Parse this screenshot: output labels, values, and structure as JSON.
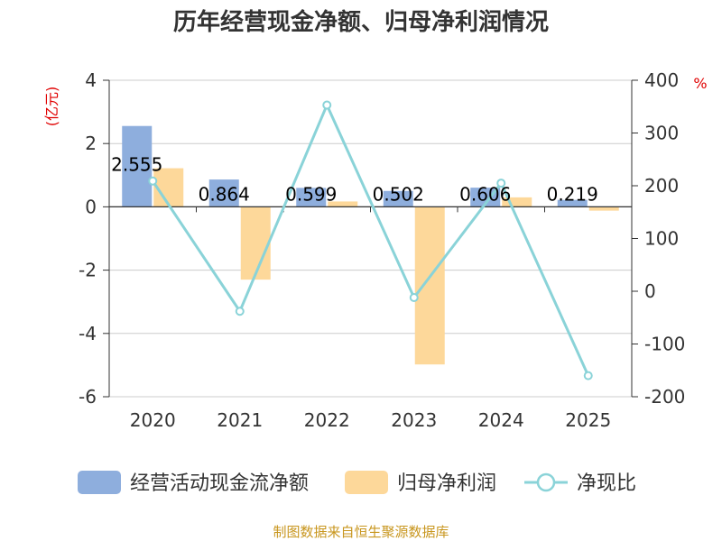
{
  "chart_data": {
    "type": "bar",
    "title": "历年经营现金净额、归母净利润情况",
    "categories": [
      "2020",
      "2021",
      "2022",
      "2023",
      "2024",
      "2025"
    ],
    "left_axis": {
      "unit": "(亿元)",
      "ylim": [
        -6,
        4
      ],
      "ticks": [
        "4",
        "2",
        "0",
        "-2",
        "-4",
        "-6"
      ],
      "tick_values": [
        4,
        2,
        0,
        -2,
        -4,
        -6
      ]
    },
    "right_axis": {
      "unit": "%",
      "ylim": [
        -200,
        400
      ],
      "ticks": [
        "400",
        "300",
        "200",
        "100",
        "0",
        "-100",
        "-200"
      ],
      "tick_values": [
        400,
        300,
        200,
        100,
        0,
        -100,
        -200
      ]
    },
    "series": [
      {
        "name": "经营活动现金流净额",
        "type": "bar",
        "axis": "left",
        "color": "#8eaedd",
        "values": [
          2.555,
          0.864,
          0.599,
          0.502,
          0.606,
          0.219
        ],
        "labels": [
          "2.555",
          "0.864",
          "0.599",
          "0.502",
          "0.606",
          "0.219"
        ]
      },
      {
        "name": "归母净利润",
        "type": "bar",
        "axis": "left",
        "color": "#fdd89a",
        "values": [
          1.22,
          -2.3,
          0.17,
          -4.98,
          0.3,
          -0.12
        ]
      },
      {
        "name": "净现比",
        "type": "line",
        "axis": "right",
        "color": "#8ad3d8",
        "values": [
          209,
          -38,
          353,
          -12,
          205,
          -160
        ]
      }
    ],
    "source": "制图数据来自恒生聚源数据库"
  }
}
